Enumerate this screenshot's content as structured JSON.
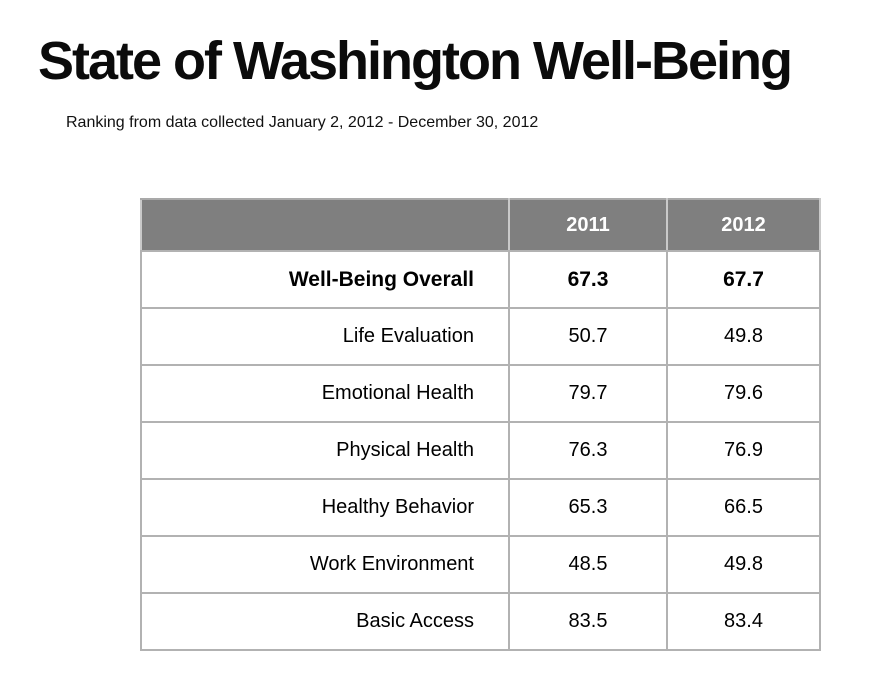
{
  "page": {
    "title": "State of Washington Well-Being",
    "subtitle": "Ranking from data collected January 2, 2012 - December 30, 2012"
  },
  "colors": {
    "background": "#ffffff",
    "header_bg": "#7f7f7f",
    "header_text": "#ffffff",
    "body_text": "#000000",
    "grid_border": "#b2b2b2"
  },
  "chart_data": {
    "type": "table",
    "title": "State of Washington Well-Being",
    "subtitle": "Ranking from data collected January 2, 2012 - December 30, 2012",
    "columns": [
      "",
      "2011",
      "2012"
    ],
    "rows": [
      {
        "label": "Well-Being Overall",
        "values": [
          "67.3",
          "67.7"
        ],
        "bold": true
      },
      {
        "label": "Life Evaluation",
        "values": [
          "50.7",
          "49.8"
        ],
        "bold": false
      },
      {
        "label": "Emotional Health",
        "values": [
          "79.7",
          "79.6"
        ],
        "bold": false
      },
      {
        "label": "Physical Health",
        "values": [
          "76.3",
          "76.9"
        ],
        "bold": false
      },
      {
        "label": "Healthy Behavior",
        "values": [
          "65.3",
          "66.5"
        ],
        "bold": false
      },
      {
        "label": "Work Environment",
        "values": [
          "48.5",
          "49.8"
        ],
        "bold": false
      },
      {
        "label": "Basic Access",
        "values": [
          "83.5",
          "83.4"
        ],
        "bold": false
      }
    ]
  }
}
